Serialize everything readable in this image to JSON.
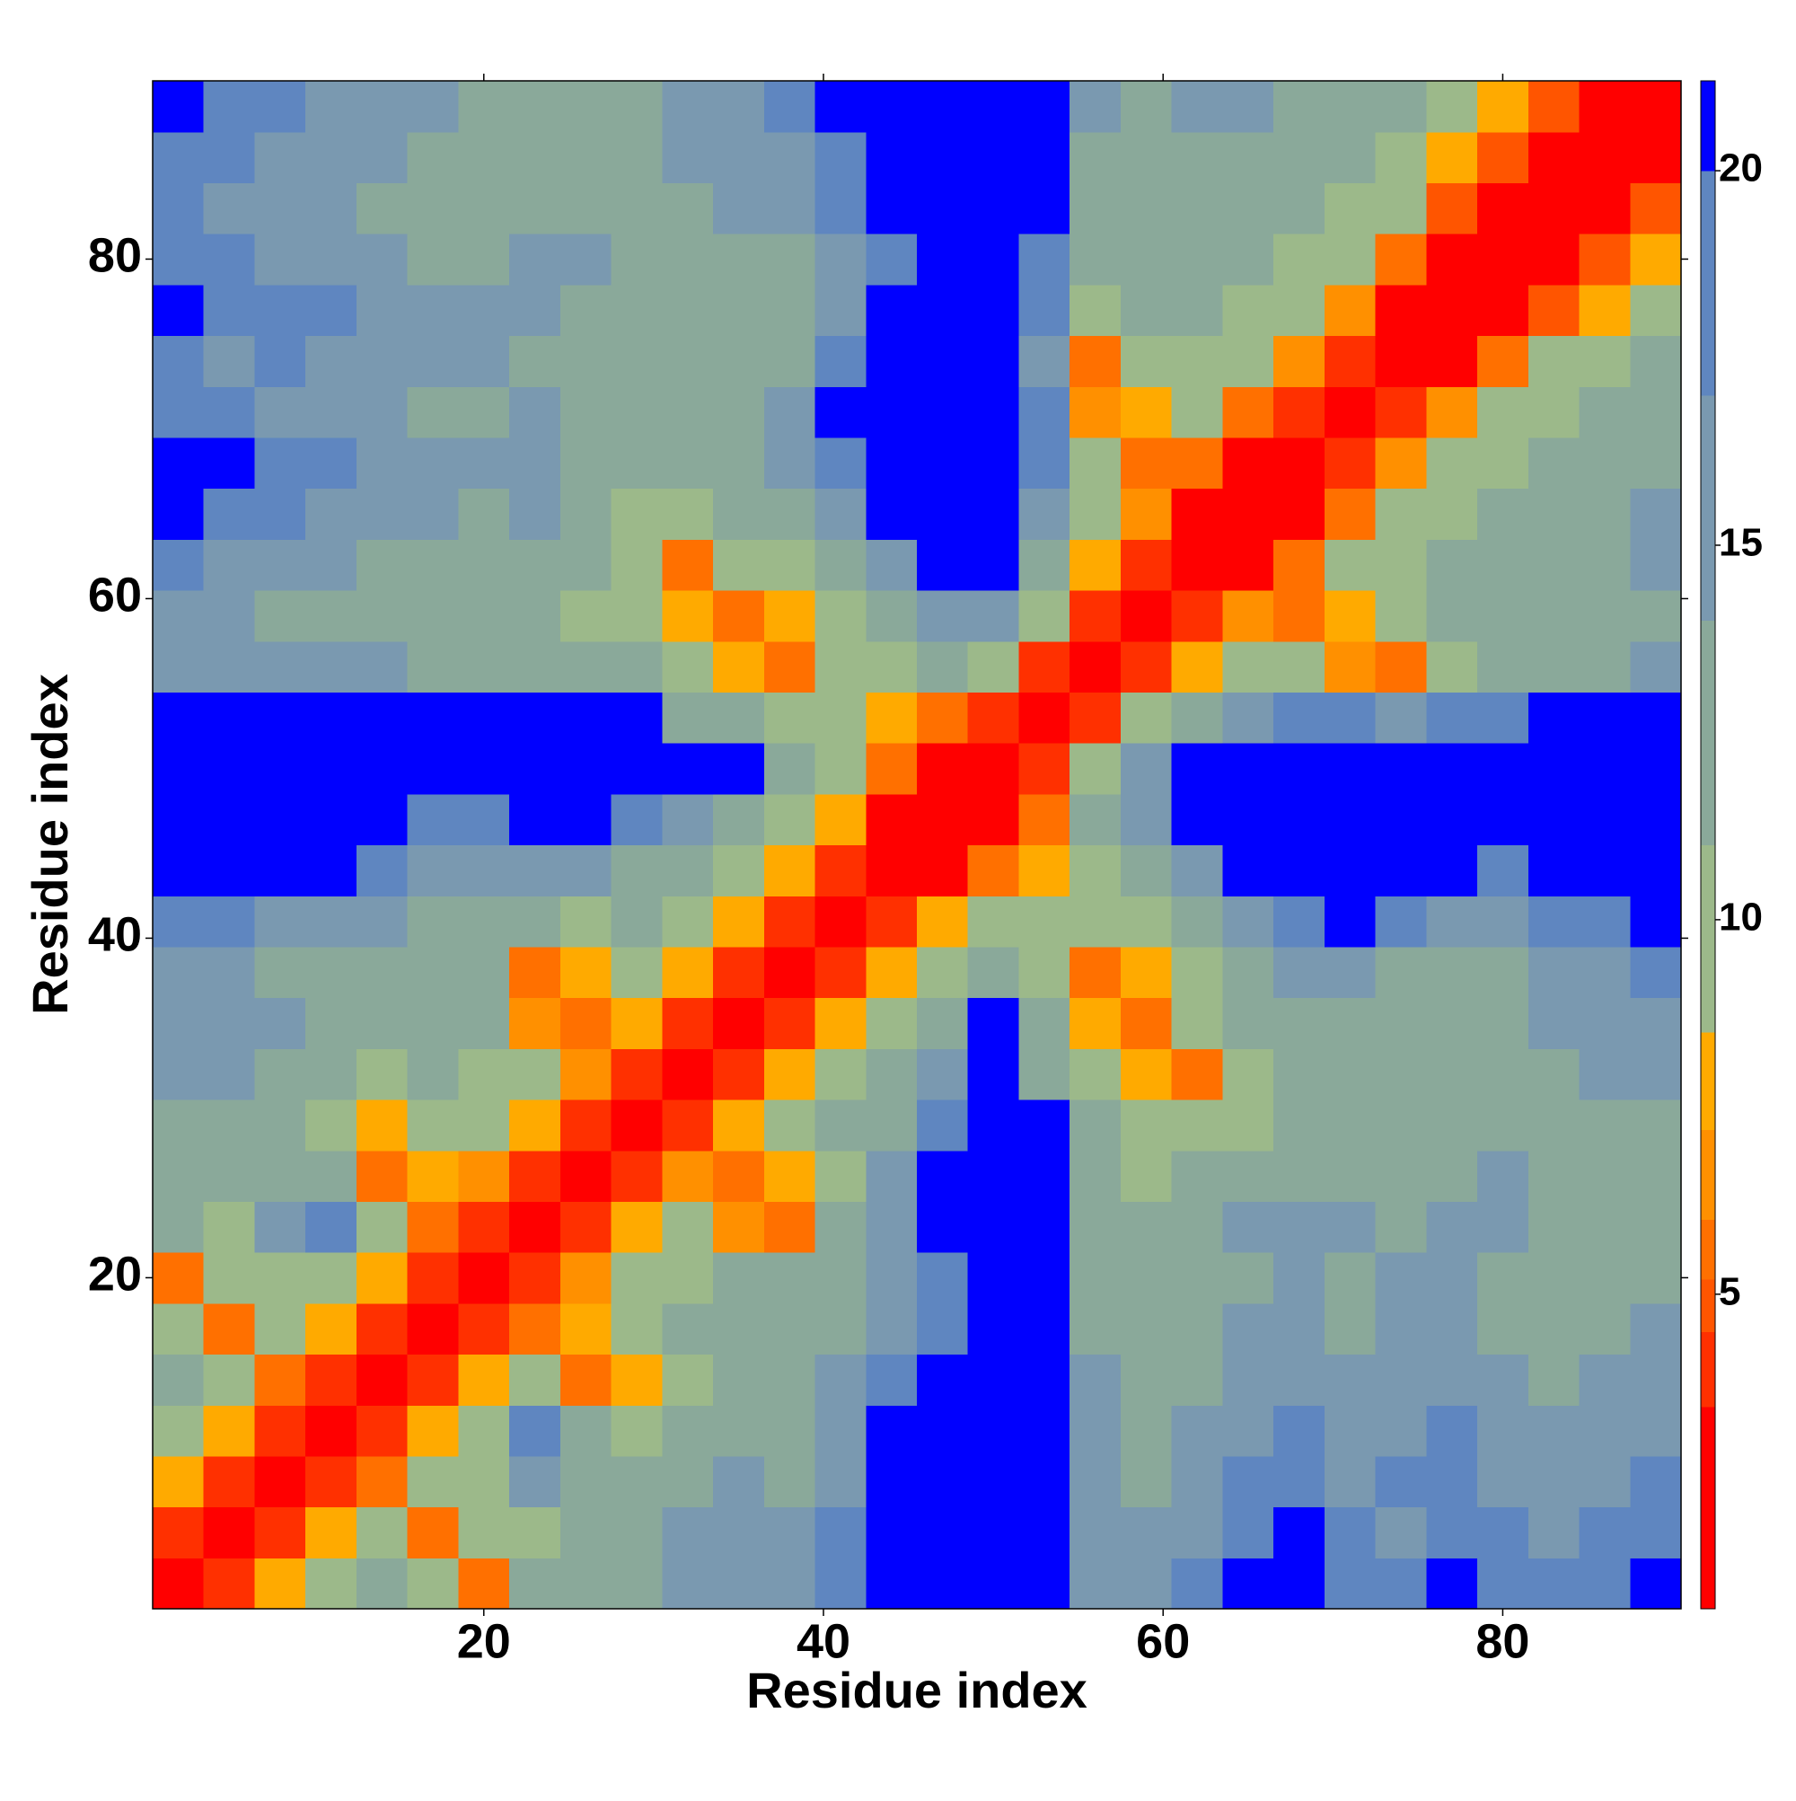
{
  "chart_data": {
    "type": "heatmap",
    "xlabel": "Residue index",
    "ylabel": "Residue index",
    "x": [
      2,
      5,
      8,
      11,
      14,
      17,
      20,
      23,
      26,
      29,
      32,
      35,
      38,
      41,
      44,
      47,
      50,
      53,
      56,
      59,
      62,
      65,
      68,
      71,
      74,
      77,
      80,
      83,
      86,
      89
    ],
    "y": [
      2,
      5,
      8,
      11,
      14,
      17,
      20,
      23,
      26,
      29,
      32,
      35,
      38,
      41,
      44,
      47,
      50,
      53,
      56,
      59,
      62,
      65,
      68,
      71,
      74,
      77,
      80,
      83,
      86,
      89
    ],
    "z": [
      [
        2,
        4,
        8,
        11,
        12,
        9,
        6,
        12,
        13,
        14,
        16,
        17,
        16,
        19,
        21,
        21,
        21,
        21,
        17,
        16,
        18,
        21,
        21,
        19,
        18,
        21,
        19,
        18,
        19,
        21
      ],
      [
        4,
        2,
        4,
        8,
        10,
        6,
        9,
        11,
        12,
        14,
        15,
        16,
        15,
        18,
        21,
        21,
        21,
        21,
        16,
        15,
        17,
        19,
        21,
        18,
        17,
        19,
        18,
        17,
        18,
        19
      ],
      [
        8,
        4,
        2,
        4,
        6,
        9,
        11,
        16,
        13,
        12,
        14,
        15,
        14,
        17,
        21,
        21,
        21,
        21,
        15,
        14,
        16,
        18,
        19,
        17,
        18,
        19,
        17,
        16,
        17,
        18
      ],
      [
        11,
        8,
        4,
        2,
        4,
        8,
        11,
        20,
        12,
        11,
        13,
        14,
        14,
        16,
        21,
        21,
        21,
        21,
        16,
        14,
        15,
        17,
        18,
        16,
        17,
        18,
        16,
        15,
        16,
        17
      ],
      [
        12,
        10,
        6,
        4,
        2,
        4,
        8,
        9,
        6,
        8,
        11,
        13,
        14,
        15,
        19,
        21,
        21,
        21,
        15,
        13,
        14,
        16,
        17,
        15,
        16,
        17,
        15,
        14,
        15,
        16
      ],
      [
        9,
        6,
        9,
        8,
        4,
        2,
        4,
        6,
        8,
        10,
        12,
        13,
        13,
        14,
        17,
        20,
        21,
        21,
        14,
        12,
        13,
        15,
        16,
        14,
        15,
        16,
        14,
        13,
        14,
        15
      ],
      [
        6,
        9,
        11,
        11,
        8,
        4,
        2,
        4,
        7,
        9,
        11,
        12,
        12,
        13,
        16,
        19,
        21,
        21,
        13,
        12,
        13,
        14,
        15,
        14,
        15,
        16,
        14,
        14,
        13,
        14
      ],
      [
        12,
        11,
        16,
        20,
        9,
        6,
        4,
        2,
        4,
        8,
        10,
        7,
        6,
        12,
        16,
        21,
        21,
        21,
        13,
        12,
        13,
        15,
        16,
        15,
        14,
        15,
        16,
        14,
        13,
        12
      ],
      [
        13,
        12,
        13,
        12,
        6,
        8,
        7,
        4,
        2,
        4,
        7,
        6,
        8,
        11,
        15,
        21,
        21,
        21,
        12,
        11,
        12,
        13,
        14,
        13,
        13,
        14,
        15,
        13,
        12,
        13
      ],
      [
        14,
        14,
        12,
        11,
        8,
        10,
        9,
        8,
        4,
        2,
        4,
        8,
        10,
        12,
        14,
        18,
        21,
        21,
        12,
        10,
        9,
        11,
        12,
        13,
        12,
        13,
        14,
        12,
        12,
        13
      ],
      [
        16,
        15,
        14,
        13,
        11,
        12,
        11,
        10,
        7,
        4,
        2,
        4,
        8,
        11,
        13,
        16,
        21,
        14,
        10,
        8,
        6,
        10,
        12,
        13,
        12,
        13,
        14,
        14,
        15,
        16
      ],
      [
        17,
        16,
        15,
        14,
        13,
        13,
        12,
        7,
        6,
        8,
        4,
        2,
        4,
        8,
        11,
        14,
        21,
        12,
        8,
        6,
        9,
        12,
        13,
        14,
        13,
        12,
        13,
        15,
        16,
        17
      ],
      [
        16,
        15,
        14,
        14,
        14,
        13,
        12,
        6,
        8,
        10,
        8,
        4,
        2,
        4,
        8,
        11,
        14,
        11,
        6,
        8,
        11,
        14,
        15,
        16,
        14,
        13,
        14,
        16,
        17,
        18
      ],
      [
        19,
        18,
        17,
        16,
        15,
        14,
        13,
        12,
        11,
        12,
        11,
        8,
        4,
        2,
        4,
        8,
        10,
        10,
        9,
        11,
        14,
        17,
        19,
        21,
        18,
        17,
        16,
        18,
        19,
        21
      ],
      [
        21,
        21,
        21,
        21,
        19,
        17,
        16,
        16,
        15,
        14,
        13,
        11,
        8,
        4,
        2,
        3,
        6,
        8,
        11,
        14,
        17,
        21,
        21,
        21,
        21,
        21,
        19,
        21,
        21,
        21
      ],
      [
        21,
        21,
        21,
        21,
        21,
        20,
        19,
        21,
        21,
        18,
        16,
        14,
        11,
        8,
        3,
        2,
        3,
        6,
        12,
        16,
        21,
        21,
        21,
        21,
        21,
        21,
        21,
        21,
        21,
        21
      ],
      [
        21,
        21,
        21,
        21,
        21,
        21,
        21,
        21,
        21,
        21,
        21,
        21,
        14,
        10,
        6,
        3,
        2,
        4,
        10,
        15,
        21,
        21,
        21,
        21,
        21,
        21,
        21,
        21,
        21,
        21
      ],
      [
        21,
        21,
        21,
        21,
        21,
        21,
        21,
        21,
        21,
        21,
        14,
        12,
        11,
        10,
        8,
        6,
        4,
        2,
        4,
        10,
        14,
        17,
        19,
        18,
        17,
        18,
        19,
        21,
        21,
        21
      ],
      [
        17,
        16,
        15,
        16,
        15,
        14,
        13,
        13,
        12,
        12,
        10,
        8,
        6,
        9,
        11,
        12,
        10,
        4,
        2,
        4,
        8,
        10,
        9,
        7,
        6,
        10,
        12,
        13,
        14,
        15
      ],
      [
        16,
        15,
        14,
        14,
        13,
        12,
        12,
        12,
        11,
        10,
        8,
        6,
        8,
        11,
        14,
        16,
        15,
        10,
        4,
        2,
        4,
        7,
        6,
        8,
        10,
        12,
        13,
        12,
        13,
        14
      ],
      [
        18,
        17,
        16,
        15,
        14,
        13,
        13,
        13,
        12,
        9,
        6,
        9,
        11,
        14,
        17,
        21,
        21,
        14,
        8,
        4,
        2,
        3,
        6,
        9,
        11,
        12,
        12,
        13,
        14,
        15
      ],
      [
        21,
        19,
        18,
        17,
        16,
        15,
        14,
        15,
        13,
        11,
        10,
        12,
        14,
        17,
        21,
        21,
        21,
        17,
        10,
        7,
        3,
        2,
        3,
        6,
        9,
        11,
        12,
        13,
        14,
        15
      ],
      [
        21,
        21,
        19,
        18,
        17,
        16,
        15,
        16,
        14,
        12,
        12,
        13,
        15,
        19,
        21,
        21,
        21,
        19,
        9,
        6,
        6,
        3,
        2,
        4,
        7,
        10,
        11,
        12,
        13,
        14
      ],
      [
        19,
        18,
        17,
        16,
        15,
        14,
        14,
        15,
        13,
        13,
        13,
        14,
        16,
        21,
        21,
        21,
        21,
        18,
        7,
        8,
        9,
        6,
        4,
        2,
        4,
        7,
        9,
        11,
        12,
        13
      ],
      [
        18,
        17,
        18,
        17,
        16,
        15,
        15,
        14,
        13,
        12,
        12,
        13,
        14,
        18,
        21,
        21,
        21,
        17,
        6,
        10,
        11,
        9,
        7,
        4,
        2,
        3,
        6,
        9,
        11,
        12
      ],
      [
        21,
        19,
        19,
        18,
        17,
        16,
        16,
        15,
        14,
        13,
        13,
        12,
        13,
        17,
        21,
        21,
        21,
        18,
        10,
        12,
        12,
        11,
        10,
        7,
        3,
        2,
        3,
        5,
        8,
        10
      ],
      [
        19,
        18,
        17,
        16,
        15,
        14,
        14,
        16,
        15,
        14,
        14,
        13,
        14,
        16,
        19,
        21,
        21,
        19,
        12,
        13,
        12,
        12,
        11,
        9,
        6,
        3,
        2,
        3,
        5,
        8
      ],
      [
        18,
        17,
        16,
        15,
        14,
        13,
        14,
        14,
        13,
        12,
        14,
        15,
        16,
        18,
        21,
        21,
        21,
        21,
        13,
        12,
        13,
        13,
        12,
        11,
        9,
        5,
        3,
        2,
        3,
        5
      ],
      [
        19,
        18,
        17,
        16,
        15,
        14,
        13,
        13,
        12,
        12,
        15,
        16,
        17,
        19,
        21,
        21,
        21,
        21,
        14,
        13,
        14,
        14,
        13,
        12,
        11,
        8,
        5,
        3,
        2,
        3
      ],
      [
        21,
        19,
        18,
        17,
        16,
        15,
        14,
        12,
        13,
        13,
        16,
        17,
        18,
        21,
        21,
        21,
        21,
        21,
        15,
        14,
        15,
        15,
        14,
        13,
        12,
        10,
        8,
        5,
        3,
        2
      ]
    ],
    "xlim": [
      0.5,
      90.5
    ],
    "ylim": [
      0.5,
      90.5
    ],
    "xticks": [
      20,
      40,
      60,
      80
    ],
    "yticks": [
      20,
      40,
      60,
      80
    ],
    "zlim": [
      0.8,
      21.2
    ],
    "zticks": [
      5,
      10,
      15,
      20
    ],
    "colorscale": [
      {
        "max": 3.5,
        "color": "#ff0000"
      },
      {
        "max": 4.5,
        "color": "#ff3000"
      },
      {
        "max": 5.2,
        "color": "#ff5500"
      },
      {
        "max": 6,
        "color": "#ff7000"
      },
      {
        "max": 7.2,
        "color": "#ff9000"
      },
      {
        "max": 8.5,
        "color": "#ffaa00"
      },
      {
        "max": 11,
        "color": "#9cb98a"
      },
      {
        "max": 14,
        "color": "#8aa99a"
      },
      {
        "max": 17,
        "color": "#7a99b0"
      },
      {
        "max": 20,
        "color": "#5f86c0"
      },
      {
        "max": 21.2,
        "color": "#0000ff"
      }
    ]
  }
}
